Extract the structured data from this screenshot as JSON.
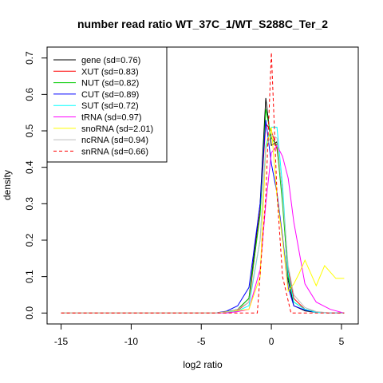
{
  "chart_data": {
    "type": "line",
    "title": "number read ratio WT_37C_1/WT_S288C_Ter_2",
    "xlabel": "log2 ratio",
    "ylabel": "density",
    "xlim": [
      -16,
      6.2
    ],
    "ylim": [
      -0.03,
      0.73
    ],
    "x_ticks": [
      -15,
      -10,
      -5,
      0,
      5
    ],
    "y_ticks": [
      0.0,
      0.1,
      0.2,
      0.3,
      0.4,
      0.5,
      0.6,
      0.7
    ],
    "legend_position": "top-left",
    "grid": false,
    "series": [
      {
        "name": "gene (sd=0.76)",
        "color": "#000000",
        "dash": false,
        "x": [
          -15,
          -4,
          -3.2,
          -2.4,
          -1.6,
          -0.8,
          -0.4,
          0,
          0.4,
          0.8,
          1.2,
          1.6,
          2.4,
          3.2,
          4.2,
          5.2
        ],
        "y": [
          0,
          0,
          0.003,
          0.01,
          0.04,
          0.3,
          0.59,
          0.46,
          0.47,
          0.32,
          0.09,
          0.02,
          0.006,
          0.002,
          0,
          0
        ]
      },
      {
        "name": "XUT (sd=0.83)",
        "color": "#ff0000",
        "dash": false,
        "x": [
          -15,
          -4,
          -3.2,
          -2.4,
          -1.6,
          -0.8,
          -0.4,
          0,
          0.4,
          0.8,
          1.2,
          1.6,
          2.4,
          3.2,
          4.2,
          5.2
        ],
        "y": [
          0,
          0,
          0.002,
          0.008,
          0.03,
          0.28,
          0.52,
          0.5,
          0.45,
          0.33,
          0.12,
          0.04,
          0.01,
          0.003,
          0,
          0
        ]
      },
      {
        "name": "NUT (sd=0.82)",
        "color": "#00cc00",
        "dash": false,
        "x": [
          -15,
          -4,
          -3.2,
          -2.4,
          -1.6,
          -0.8,
          -0.4,
          0,
          0.4,
          0.8,
          1.2,
          1.6,
          2.4,
          3.2,
          4.2,
          5.2
        ],
        "y": [
          0,
          0,
          0.003,
          0.01,
          0.04,
          0.27,
          0.56,
          0.48,
          0.46,
          0.3,
          0.1,
          0.03,
          0.01,
          0.002,
          0,
          0
        ]
      },
      {
        "name": "CUT (sd=0.89)",
        "color": "#0000ff",
        "dash": false,
        "x": [
          -15,
          -4,
          -3.2,
          -2.4,
          -1.6,
          -0.8,
          -0.4,
          0,
          0.4,
          0.8,
          1.2,
          1.6,
          2.4,
          3.2,
          4.2,
          5.2
        ],
        "y": [
          0,
          0,
          0.005,
          0.02,
          0.07,
          0.3,
          0.53,
          0.41,
          0.33,
          0.21,
          0.07,
          0.02,
          0.008,
          0.002,
          0,
          0
        ]
      },
      {
        "name": "SUT (sd=0.72)",
        "color": "#00ffff",
        "dash": false,
        "x": [
          -15,
          -4,
          -3.2,
          -2.4,
          -1.6,
          -0.8,
          -0.4,
          0,
          0.4,
          0.8,
          1.2,
          1.6,
          2.4,
          3.2,
          4.2,
          5.2
        ],
        "y": [
          0,
          0,
          0.002,
          0.006,
          0.02,
          0.2,
          0.46,
          0.51,
          0.51,
          0.35,
          0.11,
          0.03,
          0.01,
          0.002,
          0,
          0
        ]
      },
      {
        "name": "tRNA (sd=0.97)",
        "color": "#ff00ff",
        "dash": false,
        "x": [
          -15,
          -4,
          -3.2,
          -2.4,
          -1.6,
          -0.8,
          -0.4,
          0,
          0.4,
          0.8,
          1.2,
          1.6,
          2.4,
          3.2,
          4.2,
          5.2
        ],
        "y": [
          0,
          0,
          0,
          0.004,
          0.01,
          0.12,
          0.3,
          0.44,
          0.46,
          0.43,
          0.37,
          0.25,
          0.08,
          0.03,
          0.01,
          0
        ]
      },
      {
        "name": "snoRNA (sd=2.01)",
        "color": "#ffff00",
        "dash": false,
        "x": [
          -15,
          -4,
          -1.6,
          -0.8,
          -0.4,
          0,
          0.4,
          0.8,
          1.2,
          1.6,
          2.0,
          2.4,
          3.2,
          3.8,
          4.6,
          5.2
        ],
        "y": [
          0,
          0,
          0.01,
          0.1,
          0.45,
          0.51,
          0.32,
          0.2,
          0.06,
          0.08,
          0.11,
          0.145,
          0.075,
          0.13,
          0.095,
          0.095
        ]
      },
      {
        "name": "ncRNA (sd=0.94)",
        "color": "#bebebe",
        "dash": false,
        "x": [
          -15,
          -4,
          -3.2,
          -2.4,
          -1.6,
          -0.8,
          -0.4,
          0,
          0.4,
          0.8,
          1.2,
          1.6,
          2.4,
          3.2,
          4.2,
          5.2
        ],
        "y": [
          0,
          0,
          0.002,
          0.01,
          0.03,
          0.2,
          0.45,
          0.49,
          0.48,
          0.32,
          0.13,
          0.05,
          0.015,
          0.004,
          0,
          0
        ]
      },
      {
        "name": "snRNA (sd=0.66)",
        "color": "#ff0000",
        "dash": true,
        "x": [
          -15,
          -1,
          -0.4,
          0,
          0.4,
          0.8,
          1.4,
          1.8,
          5.2
        ],
        "y": [
          0,
          0,
          0.32,
          0.715,
          0.33,
          0.1,
          0.0,
          0.0,
          0
        ]
      }
    ]
  }
}
